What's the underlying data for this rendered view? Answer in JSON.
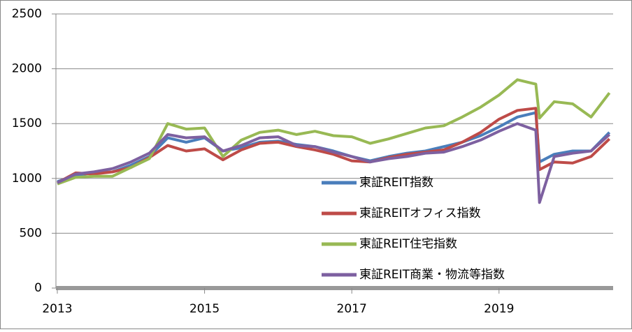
{
  "chart_data": {
    "type": "line",
    "x": [
      2013,
      2013.25,
      2013.5,
      2013.75,
      2014,
      2014.25,
      2014.5,
      2014.75,
      2015,
      2015.25,
      2015.5,
      2015.75,
      2016,
      2016.25,
      2016.5,
      2016.75,
      2017,
      2017.25,
      2017.5,
      2017.75,
      2018,
      2018.25,
      2018.5,
      2018.75,
      2019,
      2019.25,
      2019.5,
      2019.55,
      2019.75,
      2020,
      2020.25,
      2020.5
    ],
    "series": [
      {
        "name": "東証REIT指数",
        "color": "#4a7ebb",
        "values": [
          970,
          1030,
          1050,
          1060,
          1120,
          1200,
          1370,
          1330,
          1370,
          1250,
          1280,
          1330,
          1340,
          1310,
          1290,
          1250,
          1200,
          1160,
          1200,
          1230,
          1250,
          1290,
          1330,
          1390,
          1470,
          1560,
          1600,
          1150,
          1220,
          1250,
          1250,
          1420
        ]
      },
      {
        "name": "東証REITオフィス指数",
        "color": "#be4b48",
        "values": [
          960,
          1050,
          1040,
          1060,
          1100,
          1190,
          1300,
          1250,
          1270,
          1170,
          1260,
          1320,
          1330,
          1290,
          1260,
          1220,
          1160,
          1150,
          1190,
          1220,
          1240,
          1260,
          1330,
          1420,
          1540,
          1620,
          1640,
          1080,
          1150,
          1140,
          1200,
          1360
        ]
      },
      {
        "name": "東証REIT住宅指数",
        "color": "#98b954",
        "values": [
          950,
          1010,
          1020,
          1020,
          1100,
          1180,
          1500,
          1450,
          1460,
          1200,
          1350,
          1420,
          1440,
          1400,
          1430,
          1390,
          1380,
          1320,
          1360,
          1410,
          1460,
          1480,
          1560,
          1650,
          1760,
          1900,
          1860,
          1550,
          1700,
          1680,
          1560,
          1780
        ]
      },
      {
        "name": "東証REIT商業・物流等指数",
        "color": "#7d60a0",
        "values": [
          960,
          1040,
          1060,
          1090,
          1150,
          1230,
          1400,
          1370,
          1380,
          1250,
          1300,
          1370,
          1380,
          1300,
          1290,
          1240,
          1200,
          1150,
          1180,
          1200,
          1230,
          1240,
          1290,
          1350,
          1430,
          1500,
          1440,
          780,
          1200,
          1230,
          1250,
          1400
        ]
      }
    ],
    "xlim": [
      2013,
      2020.55
    ],
    "xticks": [
      2013,
      2015,
      2017,
      2019
    ],
    "ylim": [
      0,
      2500
    ],
    "yticks": [
      0,
      500,
      1000,
      1500,
      2000,
      2500
    ],
    "grid": true,
    "legend": "center"
  }
}
